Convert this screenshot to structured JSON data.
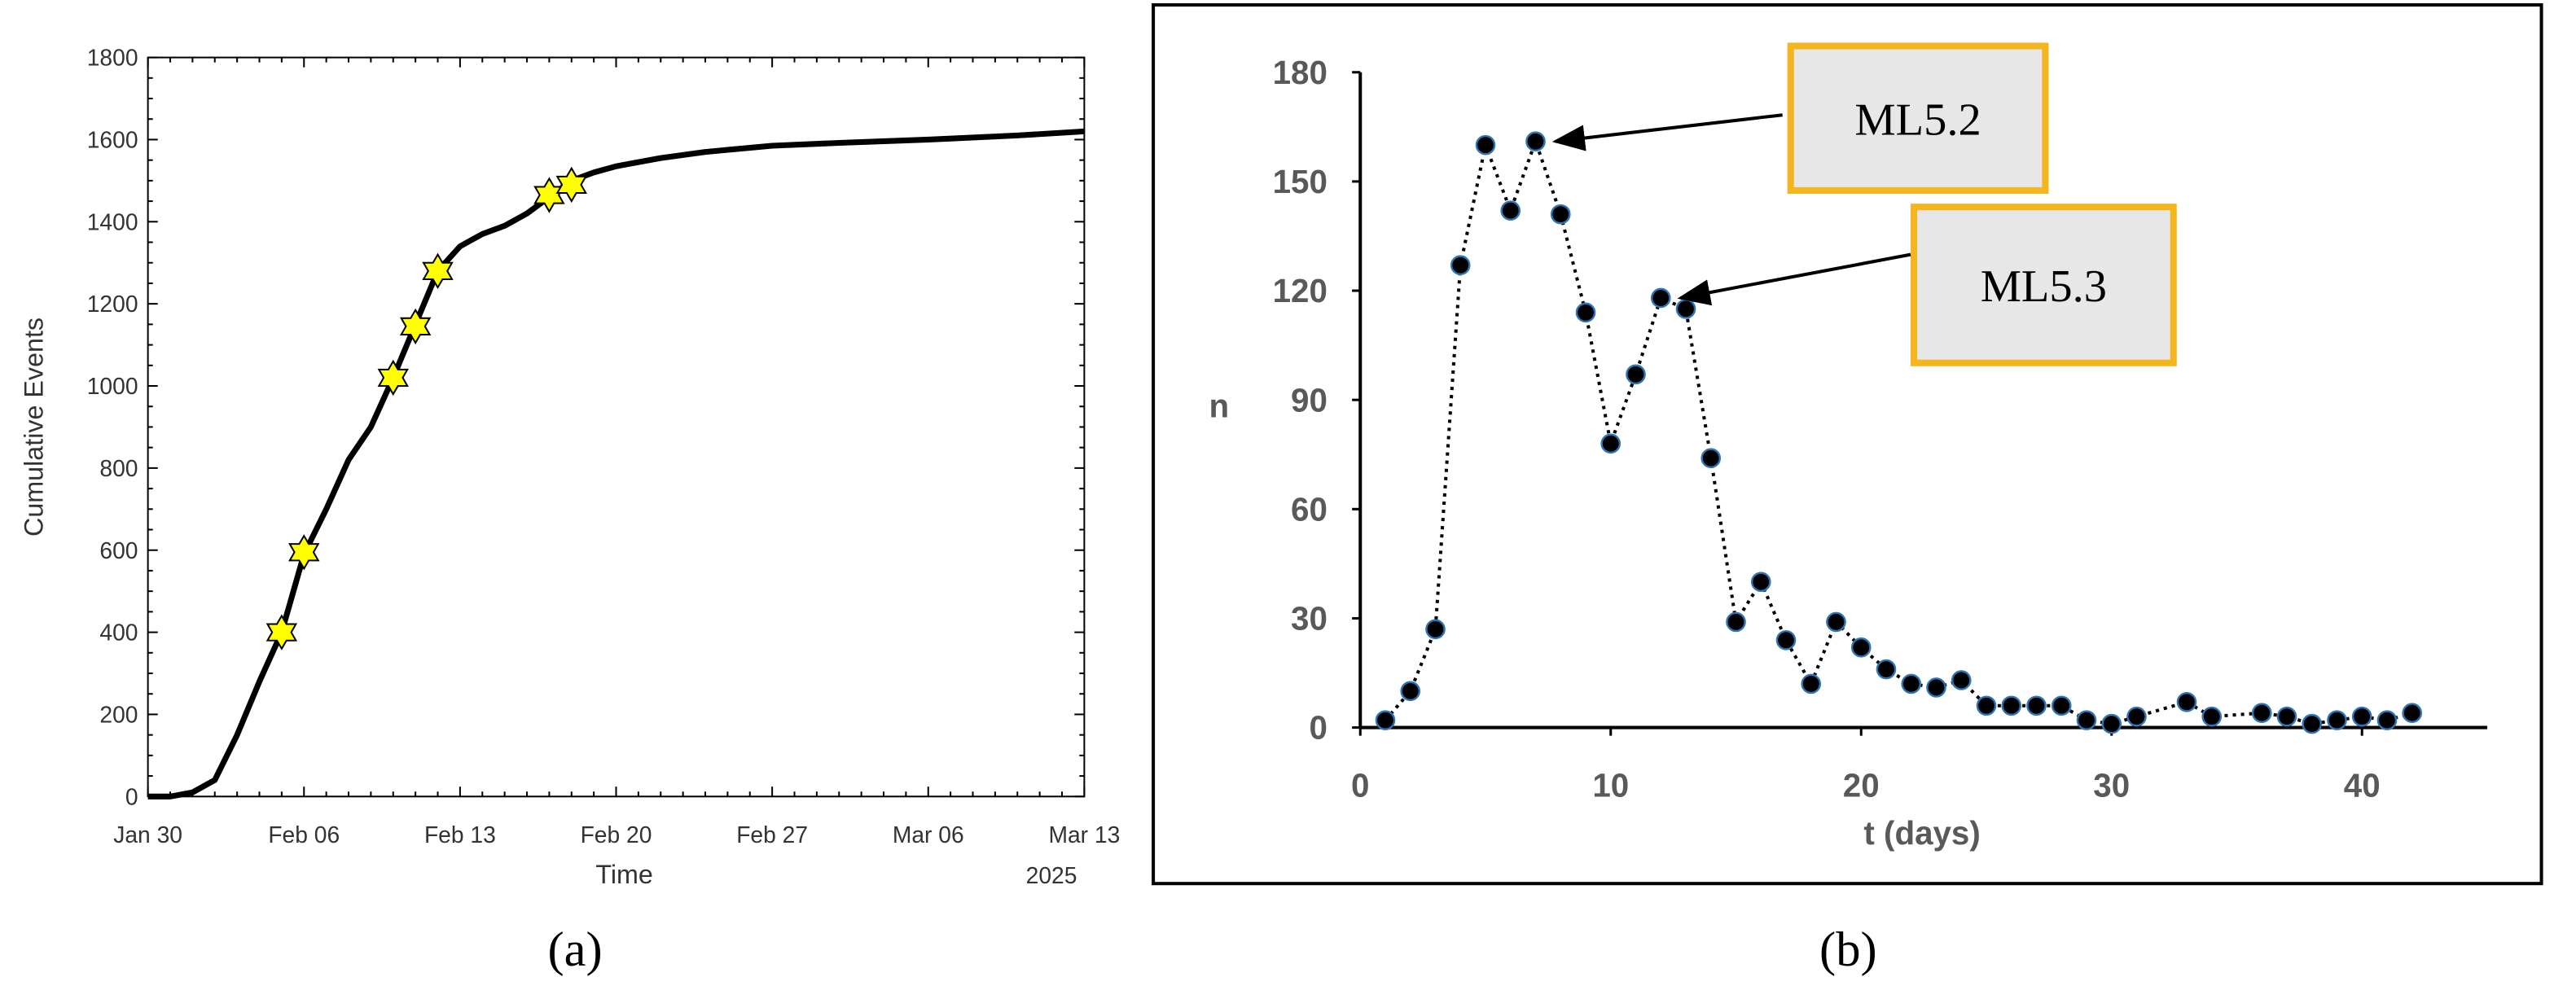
{
  "chart_data": [
    {
      "type": "line",
      "panel_label": "(a)",
      "x_label": "Time",
      "y_label": "Cumulative Events",
      "x_annotation": "2025",
      "x_scale": "date",
      "xlim": [
        "2025-01-30",
        "2025-03-13"
      ],
      "xticks": [
        {
          "value": "2025-01-30",
          "label": "Jan 30"
        },
        {
          "value": "2025-02-06",
          "label": "Feb 06"
        },
        {
          "value": "2025-02-13",
          "label": "Feb 13"
        },
        {
          "value": "2025-02-20",
          "label": "Feb 20"
        },
        {
          "value": "2025-02-27",
          "label": "Feb 27"
        },
        {
          "value": "2025-03-06",
          "label": "Mar 06"
        },
        {
          "value": "2025-03-13",
          "label": "Mar 13"
        }
      ],
      "ylim": [
        0,
        1800
      ],
      "yticks": [
        0,
        200,
        400,
        600,
        800,
        1000,
        1200,
        1400,
        1600,
        1800
      ],
      "series": [
        {
          "type": "line",
          "color": "#000000",
          "x": [
            "2025-01-30",
            "2025-01-31",
            "2025-02-01",
            "2025-02-02",
            "2025-02-03",
            "2025-02-04",
            "2025-02-05",
            "2025-02-06",
            "2025-02-07",
            "2025-02-08",
            "2025-02-09",
            "2025-02-10",
            "2025-02-11",
            "2025-02-12",
            "2025-02-13",
            "2025-02-14",
            "2025-02-15",
            "2025-02-16",
            "2025-02-17",
            "2025-02-18",
            "2025-02-19",
            "2025-02-20",
            "2025-02-22",
            "2025-02-24",
            "2025-02-27",
            "2025-03-02",
            "2025-03-06",
            "2025-03-10",
            "2025-03-13"
          ],
          "values": [
            0,
            0,
            10,
            40,
            150,
            280,
            400,
            590,
            700,
            820,
            900,
            1020,
            1150,
            1280,
            1340,
            1370,
            1390,
            1420,
            1460,
            1500,
            1520,
            1535,
            1555,
            1570,
            1585,
            1592,
            1600,
            1610,
            1620
          ]
        },
        {
          "type": "scatter",
          "marker": "star",
          "color": "#ffff00",
          "x": [
            "2025-02-05",
            "2025-02-06",
            "2025-02-10",
            "2025-02-11",
            "2025-02-12",
            "2025-02-17",
            "2025-02-18"
          ],
          "values": [
            400,
            595,
            1020,
            1145,
            1280,
            1465,
            1490
          ]
        }
      ]
    },
    {
      "type": "scatter",
      "panel_label": "(b)",
      "x_label": "t (days)",
      "y_label": "n",
      "line_style": "dotted",
      "marker": "circle",
      "color": "#000000",
      "marker_edge": "#2e75b6",
      "xlim": [
        0,
        45
      ],
      "xticks": [
        0,
        10,
        20,
        30,
        40
      ],
      "ylim": [
        0,
        180
      ],
      "yticks": [
        0,
        30,
        60,
        90,
        120,
        150,
        180
      ],
      "x": [
        1,
        2,
        3,
        4,
        5,
        6,
        7,
        8,
        9,
        10,
        11,
        12,
        13,
        14,
        15,
        16,
        17,
        18,
        19,
        20,
        21,
        22,
        23,
        24,
        25,
        26,
        27,
        28,
        29,
        30,
        31,
        33,
        34,
        36,
        37,
        38,
        39,
        40,
        41,
        42
      ],
      "values": [
        2,
        10,
        27,
        127,
        160,
        142,
        161,
        141,
        114,
        78,
        97,
        118,
        115,
        74,
        29,
        40,
        24,
        12,
        29,
        22,
        16,
        12,
        11,
        13,
        6,
        6,
        6,
        6,
        2,
        1,
        3,
        7,
        3,
        4,
        3,
        1,
        2,
        3,
        2,
        4
      ],
      "annotations": [
        "ML5.2",
        "ML5.3"
      ]
    }
  ]
}
